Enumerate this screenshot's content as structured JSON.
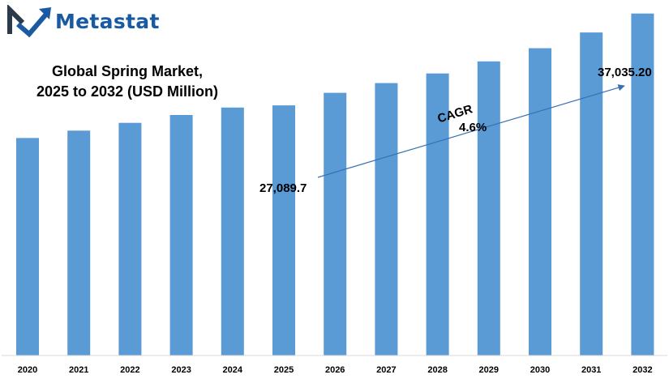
{
  "brand": {
    "name": "Metastat",
    "logo_icon": "metastat-m-logo",
    "colors": {
      "dark": "#2b3a4a",
      "blue": "#1a5aa3"
    }
  },
  "chart_data": {
    "type": "bar",
    "title_lines": [
      "Global Spring Market,",
      "2025 to 2032 (USD Million)"
    ],
    "categories": [
      "2020",
      "2021",
      "2022",
      "2023",
      "2024",
      "2025",
      "2026",
      "2027",
      "2028",
      "2029",
      "2030",
      "2031",
      "2032"
    ],
    "values": [
      23560,
      24350,
      25200,
      26050,
      26850,
      27089.7,
      28450,
      29500,
      30550,
      31850,
      33280,
      34980,
      37035.2
    ],
    "bar_color": "#5b9bd5",
    "ylim": [
      0,
      38500
    ],
    "grid": false,
    "legend": "none",
    "annotations": {
      "start_label": "27,089.7",
      "end_label": "37,035.20",
      "cagr_label": "CAGR",
      "cagr_value": "4.6%"
    }
  }
}
